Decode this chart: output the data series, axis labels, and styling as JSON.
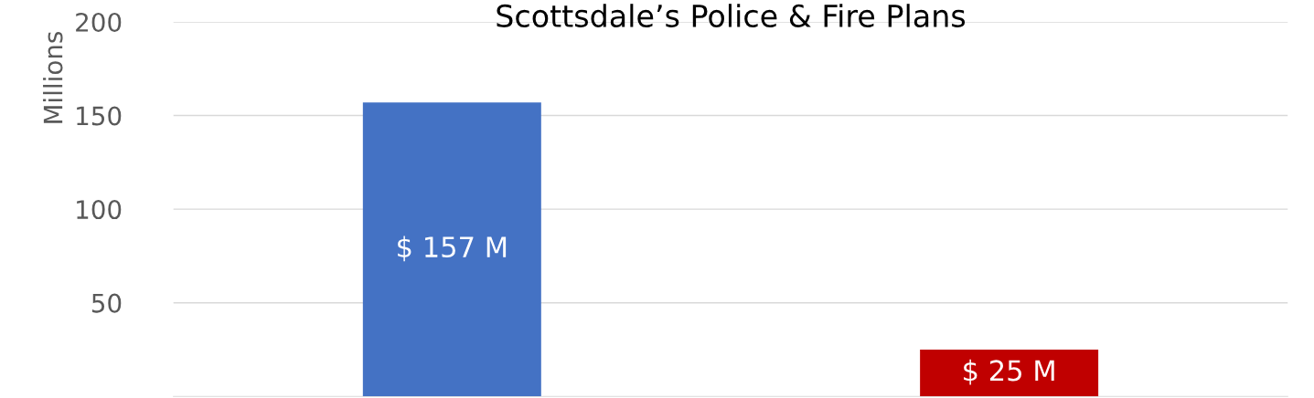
{
  "chart_data": {
    "type": "bar",
    "title": "Scottsdale’s Police & Fire Plans",
    "ylabel": "Millions",
    "categories": [
      null,
      null
    ],
    "values": [
      157,
      25
    ],
    "colors": [
      "#4472c4",
      "#c00000"
    ],
    "value_labels": [
      "$ 157 M",
      "$ 25 M"
    ],
    "ylim": [
      0,
      200
    ],
    "yticks": [
      50,
      100,
      150,
      200
    ],
    "grid": "y"
  }
}
